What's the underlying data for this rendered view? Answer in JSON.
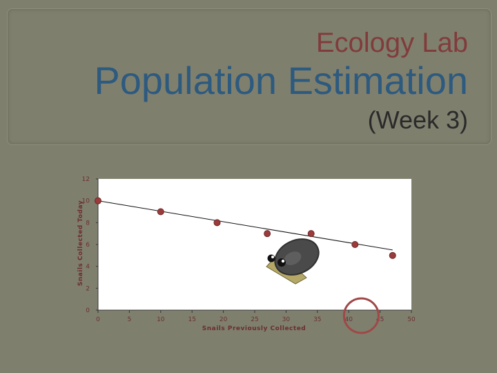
{
  "slide": {
    "title_line1": "Ecology Lab",
    "title_line2": "Population Estimation",
    "title_line3": "(Week 3)",
    "colors": {
      "background": "#7f7f6e",
      "title1": "#803c3c",
      "title2": "#2d5a7f",
      "title3": "#2a2a2a",
      "marker": "#9b3b3b",
      "highlight_circle": "#a04848"
    },
    "decoration": "snail-icon"
  },
  "chart_data": {
    "type": "scatter",
    "xlabel": "Snails Previously Collected",
    "ylabel": "Snails Collected Today",
    "xlim": [
      0,
      50
    ],
    "ylim": [
      0,
      12
    ],
    "x_ticks": [
      0,
      5,
      10,
      15,
      20,
      25,
      30,
      35,
      40,
      45,
      50
    ],
    "x_tick_labels": [
      "0",
      "5",
      "10",
      "15",
      "20",
      "25",
      "30",
      "35",
      "40",
      "45",
      "50"
    ],
    "y_ticks": [
      0,
      2,
      4,
      6,
      8,
      10,
      12
    ],
    "grid": false,
    "series": [
      {
        "x": [
          0,
          10,
          19,
          27,
          34,
          41,
          47
        ],
        "y": [
          10,
          9,
          8,
          7,
          7,
          6,
          5
        ]
      }
    ],
    "trendline": {
      "x": [
        0,
        47
      ],
      "y": [
        10,
        5.5
      ]
    },
    "highlight": {
      "x": 42,
      "y": 0
    }
  }
}
